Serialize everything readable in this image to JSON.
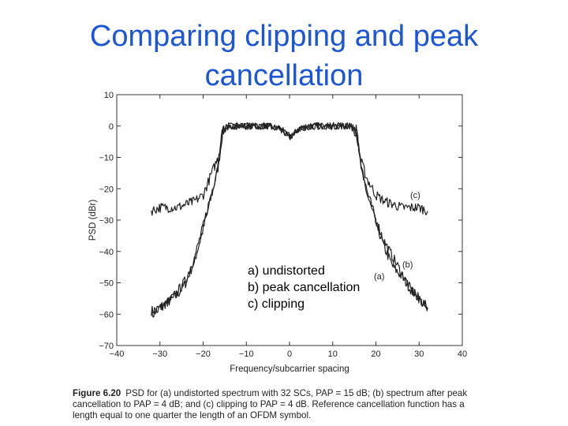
{
  "slide": {
    "title_line1": "Comparing clipping and peak",
    "title_line2": "cancellation"
  },
  "legend_box": {
    "line_a": "a) undistorted",
    "line_b": "b) peak cancellation",
    "line_c": "c) clipping"
  },
  "caption": {
    "label": "Figure 6.20",
    "text": "PSD for (a) undistorted spectrum with 32 SCs, PAP = 15 dB; (b) spectrum after peak cancellation to PAP = 4 dB; and (c) clipping to PAP = 4 dB. Reference cancellation function has a length equal to one quarter the length of an OFDM symbol."
  },
  "chart_data": {
    "type": "line",
    "xlabel": "Frequency/subcarrier spacing",
    "ylabel": "PSD (dBr)",
    "xlim": [
      -40,
      40
    ],
    "ylim": [
      -70,
      10
    ],
    "xticks": [
      -40,
      -30,
      -20,
      -10,
      0,
      10,
      20,
      30,
      40
    ],
    "yticks": [
      10,
      0,
      -10,
      -20,
      -30,
      -40,
      -50,
      -60,
      -70
    ],
    "xtick_labels": [
      "−40",
      "−30",
      "−20",
      "−10",
      "0",
      "10",
      "20",
      "30",
      "40"
    ],
    "ytick_labels": [
      "10",
      "0",
      "−10",
      "−20",
      "−30",
      "−40",
      "−50",
      "−60",
      "−70"
    ],
    "grid": false,
    "line_color": "#222222",
    "series": [
      {
        "name": "(a)",
        "x": [
          -32,
          -30,
          -28,
          -26,
          -24,
          -22,
          -20,
          -18,
          -16.5,
          -15.5,
          -14,
          -10,
          -5,
          -2,
          0,
          2,
          5,
          10,
          14,
          15.5,
          16.5,
          18,
          20,
          22,
          24,
          26,
          28,
          30,
          32
        ],
        "y": [
          -59,
          -58,
          -56,
          -54,
          -50,
          -43,
          -33,
          -22,
          -13,
          -2,
          0,
          0,
          0,
          -1,
          -4,
          -1,
          0,
          0,
          0,
          -2,
          -13,
          -22,
          -31,
          -39,
          -45,
          -48,
          -52,
          -55,
          -59
        ]
      },
      {
        "name": "(b)",
        "x": [
          -32,
          -30,
          -28,
          -26,
          -24,
          -22,
          -20,
          -18,
          -16.5,
          -15.5,
          -14,
          -10,
          -5,
          -2,
          0,
          2,
          5,
          10,
          14,
          15.5,
          16.5,
          18,
          20,
          22,
          24,
          26,
          28,
          30,
          32
        ],
        "y": [
          -60,
          -58,
          -56,
          -53,
          -49,
          -42,
          -32,
          -21,
          -12,
          -1,
          0,
          0,
          0,
          -1,
          -3,
          -1,
          0,
          0,
          0,
          -1,
          -12,
          -21,
          -30,
          -37,
          -42,
          -47,
          -52,
          -55,
          -58
        ]
      },
      {
        "name": "(c)",
        "x": [
          -32,
          -30,
          -28,
          -26,
          -24,
          -22,
          -20,
          -18,
          -16.5,
          -15.5,
          -14,
          -10,
          -5,
          -2,
          0,
          2,
          5,
          10,
          14,
          15.5,
          16.5,
          18,
          20,
          22,
          24,
          26,
          28,
          30,
          32
        ],
        "y": [
          -27,
          -26,
          -26,
          -26,
          -25,
          -24,
          -22,
          -15,
          -10,
          -1,
          0,
          0,
          0,
          -1,
          -3,
          -1,
          0,
          0,
          0,
          -1,
          -11,
          -17,
          -22,
          -24,
          -25,
          -26,
          -26,
          -26,
          -27
        ]
      }
    ],
    "annotations": [
      "(a)",
      "(b)",
      "(c)"
    ]
  }
}
